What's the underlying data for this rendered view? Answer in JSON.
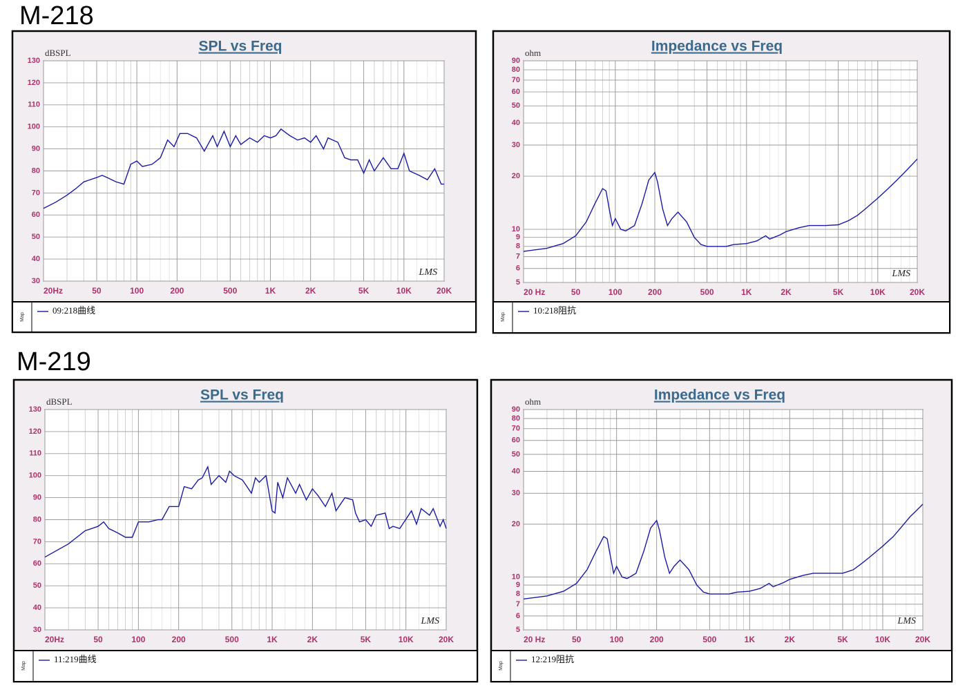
{
  "headings": [
    "M-218",
    "M-219"
  ],
  "chart_data": [
    {
      "type": "line",
      "title": "SPL vs Freq",
      "y_label": "dBSPL",
      "watermark": "LMS",
      "sidebar_label": "Map",
      "xscale": "log",
      "yscale": "linear",
      "grid": true,
      "xlim": [
        20,
        20000
      ],
      "ylim": [
        30,
        130
      ],
      "xticks": [
        {
          "value": 20,
          "label": "20Hz"
        },
        50,
        100,
        200,
        500,
        {
          "value": 1000,
          "label": "1K"
        },
        {
          "value": 2000,
          "label": "2K"
        },
        {
          "value": 5000,
          "label": "5K"
        },
        {
          "value": 10000,
          "label": "10K"
        },
        {
          "value": 20000,
          "label": "20K"
        }
      ],
      "yticks": [
        30,
        40,
        50,
        60,
        70,
        80,
        90,
        100,
        110,
        120,
        130
      ],
      "x": [
        20,
        25,
        30,
        35,
        40,
        50,
        55,
        60,
        70,
        80,
        90,
        100,
        110,
        130,
        150,
        170,
        190,
        210,
        240,
        280,
        320,
        370,
        400,
        450,
        500,
        550,
        600,
        700,
        800,
        900,
        1000,
        1100,
        1200,
        1400,
        1600,
        1800,
        2000,
        2200,
        2500,
        2700,
        3200,
        3600,
        4000,
        4500,
        5000,
        5500,
        6000,
        7000,
        8000,
        9000,
        10000,
        11000,
        13000,
        15000,
        17000,
        19000,
        20000
      ],
      "series": [
        {
          "name": "09:218曲线",
          "color": "#1a1aa8",
          "values": [
            63,
            66,
            69,
            72,
            75,
            77,
            78,
            77,
            75,
            74,
            83,
            84.5,
            82,
            83,
            86,
            94,
            91,
            97,
            97,
            95,
            89,
            96,
            91,
            98,
            91,
            96,
            92,
            95,
            93,
            96,
            95,
            96,
            99,
            96,
            94,
            95,
            93,
            96,
            90,
            95,
            93,
            86,
            85,
            85,
            79,
            85,
            80,
            86,
            81,
            81,
            88,
            80,
            78,
            76,
            81,
            74,
            74
          ]
        }
      ]
    },
    {
      "type": "line",
      "title": "Impedance vs Freq",
      "y_label": "ohm",
      "watermark": "LMS",
      "sidebar_label": "Map",
      "xscale": "log",
      "yscale": "log",
      "grid": true,
      "xlim": [
        20,
        20000
      ],
      "ylim": [
        5,
        90
      ],
      "xticks": [
        {
          "value": 20,
          "label": "20 Hz"
        },
        50,
        100,
        200,
        500,
        {
          "value": 1000,
          "label": "1K"
        },
        {
          "value": 2000,
          "label": "2K"
        },
        {
          "value": 5000,
          "label": "5K"
        },
        {
          "value": 10000,
          "label": "10K"
        },
        {
          "value": 20000,
          "label": "20K"
        }
      ],
      "yticks": [
        5,
        6,
        7,
        8,
        9,
        10,
        20,
        30,
        40,
        50,
        60,
        70,
        80,
        90
      ],
      "x": [
        20,
        30,
        40,
        50,
        60,
        70,
        80,
        85,
        90,
        95,
        100,
        110,
        120,
        140,
        160,
        180,
        200,
        210,
        230,
        250,
        270,
        300,
        350,
        400,
        450,
        500,
        600,
        700,
        800,
        1000,
        1200,
        1400,
        1500,
        1800,
        2000,
        2500,
        3000,
        4000,
        5000,
        6000,
        7000,
        8000,
        10000,
        12000,
        14000,
        16000,
        18000,
        20000
      ],
      "series": [
        {
          "name": "10:218阻抗",
          "color": "#1a1aa8",
          "values": [
            7.5,
            7.8,
            8.3,
            9.2,
            11,
            14,
            17,
            16.5,
            13,
            10.5,
            11.5,
            10,
            9.8,
            10.5,
            14,
            19,
            21,
            18.5,
            13,
            10.5,
            11.5,
            12.5,
            11,
            9,
            8.2,
            8,
            8,
            8,
            8.2,
            8.3,
            8.6,
            9.2,
            8.8,
            9.3,
            9.7,
            10.2,
            10.5,
            10.5,
            10.6,
            11.2,
            12,
            13,
            15,
            17,
            19,
            21,
            23,
            25
          ]
        }
      ]
    },
    {
      "type": "line",
      "title": "SPL vs Freq",
      "y_label": "dBSPL",
      "watermark": "LMS",
      "sidebar_label": "Map",
      "xscale": "log",
      "yscale": "linear",
      "grid": true,
      "xlim": [
        20,
        20000
      ],
      "ylim": [
        30,
        130
      ],
      "xticks": [
        {
          "value": 20,
          "label": "20Hz"
        },
        50,
        100,
        200,
        500,
        {
          "value": 1000,
          "label": "1K"
        },
        {
          "value": 2000,
          "label": "2K"
        },
        {
          "value": 5000,
          "label": "5K"
        },
        {
          "value": 10000,
          "label": "10K"
        },
        {
          "value": 20000,
          "label": "20K"
        }
      ],
      "yticks": [
        30,
        40,
        50,
        60,
        70,
        80,
        90,
        100,
        110,
        120,
        130
      ],
      "x": [
        20,
        30,
        40,
        50,
        55,
        60,
        70,
        80,
        90,
        100,
        120,
        140,
        150,
        170,
        200,
        220,
        250,
        280,
        300,
        330,
        350,
        400,
        450,
        480,
        520,
        600,
        700,
        750,
        800,
        900,
        1000,
        1050,
        1100,
        1200,
        1300,
        1500,
        1600,
        1800,
        2000,
        2200,
        2500,
        2800,
        3000,
        3500,
        4000,
        4200,
        4500,
        5000,
        5500,
        6000,
        7000,
        7500,
        8000,
        9000,
        11000,
        12000,
        13000,
        15000,
        16000,
        18000,
        19000,
        20000
      ],
      "series": [
        {
          "name": "11:219曲线",
          "color": "#1a1aa8",
          "values": [
            63,
            69,
            75,
            77,
            79,
            76,
            74,
            72,
            72,
            79,
            79,
            80,
            80,
            86,
            86,
            95,
            94,
            98,
            99,
            104,
            96,
            100,
            97,
            102,
            100,
            98,
            92,
            99,
            97,
            100,
            84,
            83,
            97,
            90,
            99,
            92,
            96,
            89,
            94,
            91,
            86,
            92,
            84,
            90,
            89,
            83,
            79,
            80,
            77,
            82,
            83,
            76,
            77,
            76,
            84,
            78,
            85,
            82,
            85,
            77,
            80,
            76
          ]
        }
      ]
    },
    {
      "type": "line",
      "title": "Impedance vs Freq",
      "y_label": "ohm",
      "watermark": "LMS",
      "sidebar_label": "Map",
      "xscale": "log",
      "yscale": "log",
      "grid": true,
      "xlim": [
        20,
        20000
      ],
      "ylim": [
        5,
        90
      ],
      "xticks": [
        {
          "value": 20,
          "label": "20  Hz"
        },
        50,
        100,
        200,
        500,
        {
          "value": 1000,
          "label": "1K"
        },
        {
          "value": 2000,
          "label": "2K"
        },
        {
          "value": 5000,
          "label": "5K"
        },
        {
          "value": 10000,
          "label": "10K"
        },
        {
          "value": 20000,
          "label": "20K"
        }
      ],
      "yticks": [
        5,
        6,
        7,
        8,
        9,
        10,
        20,
        30,
        40,
        50,
        60,
        70,
        80,
        90
      ],
      "x": [
        20,
        30,
        40,
        50,
        60,
        70,
        80,
        85,
        90,
        95,
        100,
        110,
        120,
        140,
        160,
        180,
        200,
        210,
        230,
        250,
        270,
        300,
        350,
        400,
        450,
        500,
        600,
        700,
        800,
        1000,
        1200,
        1400,
        1500,
        1800,
        2000,
        2500,
        3000,
        4000,
        5000,
        6000,
        7000,
        8000,
        10000,
        12000,
        14000,
        16000,
        18000,
        20000
      ],
      "series": [
        {
          "name": "12:219阻抗",
          "color": "#1a1aa8",
          "values": [
            7.5,
            7.8,
            8.3,
            9.2,
            11,
            14,
            17,
            16.5,
            13,
            10.5,
            11.5,
            10,
            9.8,
            10.5,
            14,
            19,
            21,
            18.5,
            13,
            10.5,
            11.5,
            12.5,
            11,
            9,
            8.2,
            8,
            8,
            8,
            8.2,
            8.3,
            8.6,
            9.2,
            8.8,
            9.3,
            9.7,
            10.2,
            10.5,
            10.5,
            10.5,
            11,
            12,
            13,
            15,
            17,
            19.5,
            22,
            24,
            26
          ]
        }
      ]
    }
  ]
}
